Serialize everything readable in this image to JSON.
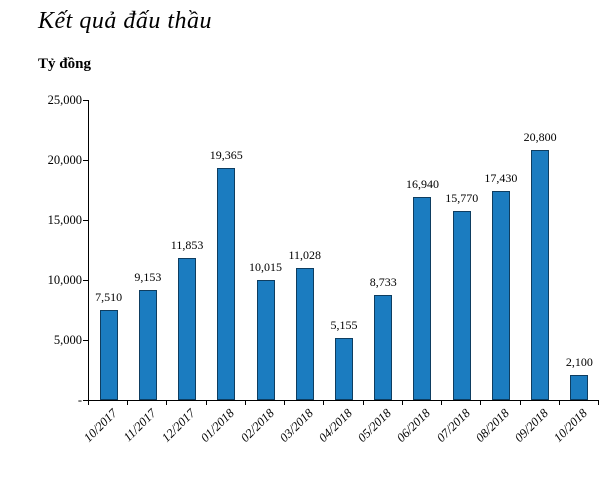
{
  "title": "Kết quả đấu thầu",
  "y_axis_unit_label": "Tỷ đồng",
  "chart_data": {
    "type": "bar",
    "title": "Kết quả đấu thầu",
    "ylabel": "Tỷ đồng",
    "xlabel": "",
    "categories": [
      "10/2017",
      "11/2017",
      "12/2017",
      "01/2018",
      "02/2018",
      "03/2018",
      "04/2018",
      "05/2018",
      "06/2018",
      "07/2018",
      "08/2018",
      "09/2018",
      "10/2018"
    ],
    "values": [
      7510,
      9153,
      11853,
      19365,
      10015,
      11028,
      5155,
      8733,
      16940,
      15770,
      17430,
      20800,
      2100
    ],
    "value_labels": [
      "7,510",
      "9,153",
      "11,853",
      "19,365",
      "10,015",
      "11,028",
      "5,155",
      "8,733",
      "16,940",
      "15,770",
      "17,430",
      "20,800",
      "2,100"
    ],
    "ylim": [
      0,
      25000
    ],
    "ytick_values": [
      0,
      5000,
      10000,
      15000,
      20000,
      25000
    ],
    "ytick_labels": [
      "-",
      "5,000",
      "10,000",
      "15,000",
      "20,000",
      "25,000"
    ],
    "grid": false,
    "legend": "none",
    "bar_color": "#1B7CC0",
    "bar_border_color": "#0E3D60"
  }
}
